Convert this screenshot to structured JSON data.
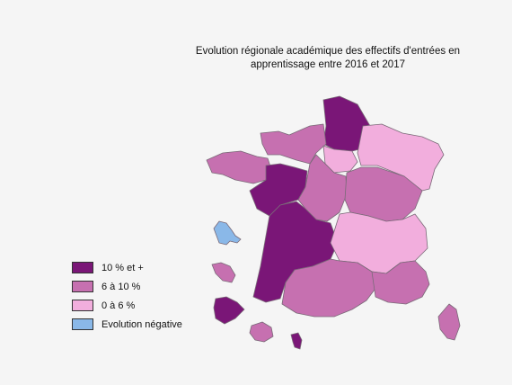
{
  "title_line1": "Evolution régionale académique des effectifs d'entrées en",
  "title_line2": "apprentissage entre 2016 et 2017",
  "colors": {
    "high": "#7a1677",
    "mid": "#c670b0",
    "low": "#f2aedd",
    "negative": "#8ab8e8"
  },
  "legend": [
    {
      "label": "10 % et +",
      "class": "high"
    },
    {
      "label": "6 à 10 %",
      "class": "mid"
    },
    {
      "label": "0 à 6 %",
      "class": "low"
    },
    {
      "label": "Evolution négative",
      "class": "negative"
    }
  ],
  "regions": [
    {
      "name": "Hauts-de-France",
      "class": "high"
    },
    {
      "name": "Normandie",
      "class": "mid"
    },
    {
      "name": "Île-de-France",
      "class": "low"
    },
    {
      "name": "Grand Est",
      "class": "low"
    },
    {
      "name": "Bretagne",
      "class": "mid"
    },
    {
      "name": "Pays de la Loire",
      "class": "high"
    },
    {
      "name": "Centre-Val de Loire",
      "class": "mid"
    },
    {
      "name": "Bourgogne-Franche-Comté",
      "class": "mid"
    },
    {
      "name": "Nouvelle-Aquitaine",
      "class": "high"
    },
    {
      "name": "Auvergne-Rhône-Alpes",
      "class": "low"
    },
    {
      "name": "Occitanie",
      "class": "mid"
    },
    {
      "name": "Provence-Alpes-Côte d'Azur",
      "class": "mid"
    },
    {
      "name": "Corse",
      "class": "mid"
    },
    {
      "name": "Guadeloupe",
      "class": "negative"
    },
    {
      "name": "Martinique",
      "class": "mid"
    },
    {
      "name": "Guyane",
      "class": "high"
    },
    {
      "name": "La Réunion",
      "class": "mid"
    },
    {
      "name": "Mayotte",
      "class": "high"
    }
  ]
}
